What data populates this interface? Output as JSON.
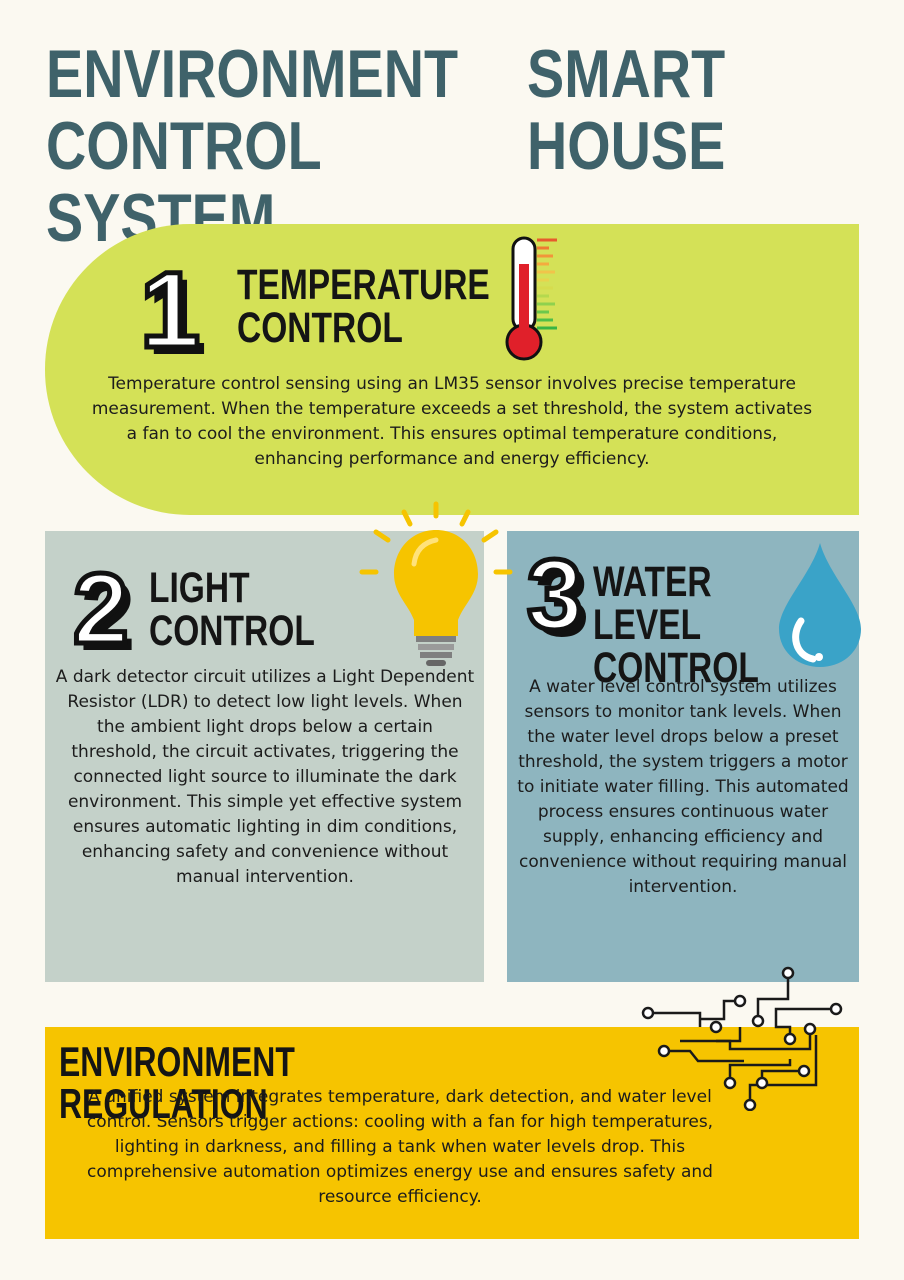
{
  "header": {
    "title_left": "ENVIRONMENT CONTROL SYSTEM",
    "title_right": "SMART HOUSE"
  },
  "sections": [
    {
      "number": "1",
      "heading": "TEMPERATURE CONTROL",
      "body": "Temperature control sensing using an LM35 sensor involves precise temperature measurement. When the temperature exceeds a set threshold, the system activates a fan to cool the environment. This ensures optimal temperature conditions, enhancing performance and energy efficiency.",
      "icon": "thermometer-icon",
      "bg_color": "#d4e157"
    },
    {
      "number": "2",
      "heading": "LIGHT CONTROL",
      "body": "A dark detector circuit utilizes a Light Dependent Resistor (LDR) to detect low light levels. When the ambient light drops below a certain threshold, the circuit activates, triggering the connected light source to illuminate the dark environment. This simple yet effective system ensures automatic lighting in dim conditions, enhancing safety and convenience without manual intervention.",
      "icon": "light-bulb-icon",
      "bg_color": "#c4d1c9"
    },
    {
      "number": "3",
      "heading": "WATER LEVEL CONTROL",
      "body": "A water level control system utilizes sensors to monitor tank levels. When the water level drops below a preset threshold, the system triggers a motor to initiate water filling. This automated process ensures continuous water supply, enhancing efficiency and convenience without requiring manual intervention.",
      "icon": "water-drop-icon",
      "bg_color": "#8eb5bf"
    }
  ],
  "regulation": {
    "heading": "ENVIRONMENT REGULATION",
    "body": "A unified system integrates temperature, dark detection, and water level control. Sensors trigger actions: cooling with a fan for high temperatures, lighting in darkness, and filling a tank when water levels drop. This comprehensive automation optimizes energy use and ensures safety and resource efficiency.",
    "icon": "circuit-icon",
    "bg_color": "#f6c400"
  },
  "colors": {
    "title": "#3f626a",
    "background": "#fbf9f1"
  }
}
